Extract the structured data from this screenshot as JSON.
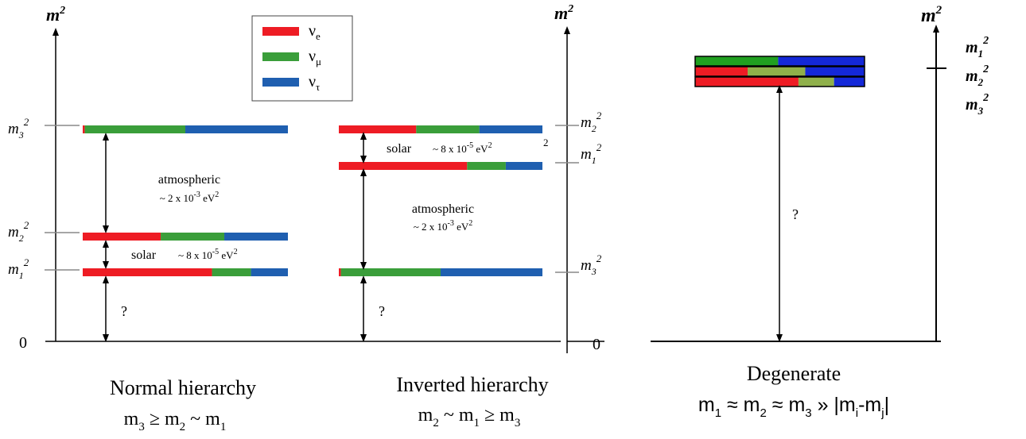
{
  "colors": {
    "nu_e": "#ee1c24",
    "nu_mu": "#3a9e3a",
    "nu_tau": "#1f5fb0",
    "nu_mu_light": "#8fb04a",
    "deg_blue": "#1428d8",
    "deg_green": "#20a020",
    "normal_caption": "#2a9a2a",
    "inverted_caption": "#e23a2a",
    "degenerate_caption": "#1a2ad0"
  },
  "legend": {
    "items": [
      {
        "name": "nu_e",
        "base": "ν",
        "sub": "e",
        "color": "#ee1c24"
      },
      {
        "name": "nu_mu",
        "base": "ν",
        "sub": "μ",
        "color": "#3a9e3a"
      },
      {
        "name": "nu_tau",
        "base": "ν",
        "sub": "τ",
        "color": "#1f5fb0"
      }
    ]
  },
  "axis_label": "m",
  "axis_label_sup": "2",
  "zero_label": "0",
  "question": "?",
  "normal": {
    "levels": [
      {
        "label": "m",
        "sub": "3",
        "sup": "2",
        "fractions": {
          "nu_e": 0.01,
          "nu_mu": 0.49,
          "nu_tau": 0.5
        }
      },
      {
        "label": "m",
        "sub": "2",
        "sup": "2",
        "fractions": {
          "nu_e": 0.38,
          "nu_mu": 0.31,
          "nu_tau": 0.31
        }
      },
      {
        "label": "m",
        "sub": "1",
        "sup": "2",
        "fractions": {
          "nu_e": 0.63,
          "nu_mu": 0.19,
          "nu_tau": 0.18
        }
      }
    ],
    "atmospheric": {
      "label": "atmospheric",
      "value_prefix": "~ 2 x 10",
      "value_exp": "-3",
      "value_unit": " eV",
      "value_unit_sup": "2"
    },
    "solar": {
      "label": "solar",
      "value_prefix": "~ 8 x 10",
      "value_exp": "-5",
      "value_unit": " eV",
      "value_unit_sup": "2"
    },
    "caption_title": "Normal hierarchy",
    "caption_formula": {
      "m3": "m",
      "m3_sub": "3",
      "rel1": " ≥  ",
      "m2": "m",
      "m2_sub": "2",
      "rel2": " ~ ",
      "m1": "m",
      "m1_sub": "1"
    }
  },
  "inverted": {
    "levels": [
      {
        "label": "m",
        "sub": "2",
        "sup": "2",
        "fractions": {
          "nu_e": 0.38,
          "nu_mu": 0.31,
          "nu_tau": 0.31
        }
      },
      {
        "label": "m",
        "sub": "1",
        "sup": "2",
        "fractions": {
          "nu_e": 0.63,
          "nu_mu": 0.19,
          "nu_tau": 0.18
        }
      },
      {
        "label": "m",
        "sub": "3",
        "sup": "2",
        "fractions": {
          "nu_e": 0.01,
          "nu_mu": 0.49,
          "nu_tau": 0.5
        }
      }
    ],
    "solar": {
      "label": "solar",
      "value_prefix": "~ 8 x 10",
      "value_exp": "-5",
      "value_unit": " eV",
      "value_unit_sup": "2",
      "stray": "2"
    },
    "atmospheric": {
      "label": "atmospheric",
      "value_prefix": "~ 2 x 10",
      "value_exp": "-3",
      "value_unit": " eV",
      "value_unit_sup": "2"
    },
    "caption_title": "Inverted hierarchy",
    "caption_formula": {
      "m2": "m",
      "m2_sub": "2",
      "rel1": " ~ ",
      "m1": "m",
      "m1_sub": "1",
      "rel2": " ≥ ",
      "m3": "m",
      "m3_sub": "3"
    }
  },
  "degenerate": {
    "labels": [
      {
        "label": "m",
        "sub": "1",
        "sup": "2"
      },
      {
        "label": "m",
        "sub": "2",
        "sup": "2"
      },
      {
        "label": "m",
        "sub": "3",
        "sup": "2"
      }
    ],
    "bars": [
      {
        "fractions": {
          "nu_mu": 0.49,
          "nu_tau": 0.51
        },
        "colors": {
          "nu_mu": "#20a020",
          "nu_tau": "#1428d8"
        }
      },
      {
        "fractions": {
          "nu_e": 0.31,
          "nu_mu": 0.34,
          "nu_tau": 0.35
        },
        "colors": {
          "nu_e": "#ee1c24",
          "nu_mu": "#8fb04a",
          "nu_tau": "#1428d8"
        }
      },
      {
        "fractions": {
          "nu_e": 0.61,
          "nu_mu": 0.21,
          "nu_tau": 0.18
        },
        "colors": {
          "nu_e": "#ee1c24",
          "nu_mu": "#8fb04a",
          "nu_tau": "#1428d8"
        }
      }
    ],
    "caption_title": "Degenerate",
    "caption_formula": {
      "m1": "m",
      "m1_sub": "1",
      "approx1": " ≈ ",
      "m2": "m",
      "m2_sub": "2",
      "approx2": " ≈ ",
      "m3": "m",
      "m3_sub": "3",
      "gg": " » |m",
      "mi_sub": "i",
      "dash": "-m",
      "mj_sub": "j",
      "close": "|"
    }
  }
}
